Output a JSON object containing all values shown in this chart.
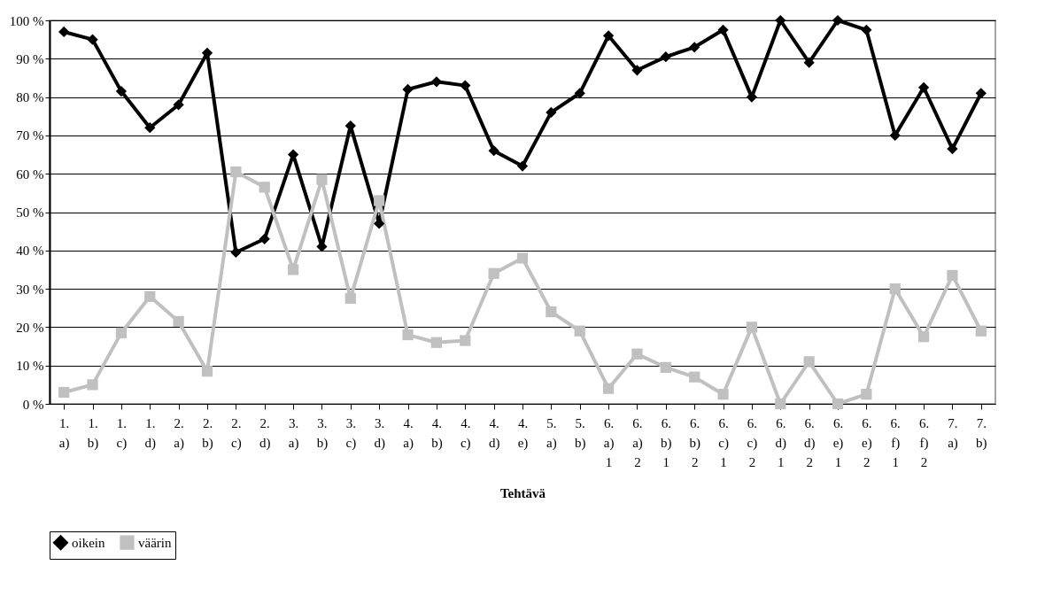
{
  "chart_data": {
    "type": "line",
    "xlabel": "Tehtävä",
    "categories": [
      "1.\na)",
      "1.\nb)",
      "1.\nc)",
      "1.\nd)",
      "2.\na)",
      "2.\nb)",
      "2.\nc)",
      "2.\nd)",
      "3.\na)",
      "3.\nb)",
      "3.\nc)",
      "3.\nd)",
      "4.\na)",
      "4.\nb)",
      "4.\nc)",
      "4.\nd)",
      "4.\ne)",
      "5.\na)",
      "5.\nb)",
      "6.\na)\n1",
      "6.\na)\n2",
      "6.\nb)\n1",
      "6.\nb)\n2",
      "6.\nc)\n1",
      "6.\nc)\n2",
      "6.\nd)\n1",
      "6.\nd)\n2",
      "6.\ne)\n1",
      "6.\ne)\n2",
      "6.\nf)\n1",
      "6.\nf)\n2",
      "7.\na)",
      "7.\nb)"
    ],
    "series": [
      {
        "name": "oikein",
        "color": "#000000",
        "marker": "diamond",
        "values": [
          97,
          95,
          81.5,
          72,
          78,
          91.5,
          39.5,
          43,
          65,
          41,
          72.5,
          47,
          82,
          84,
          83,
          66,
          62,
          76,
          81,
          96,
          87,
          90.5,
          93,
          97.5,
          80,
          100,
          89,
          100,
          97.5,
          70,
          82.5,
          66.5,
          81
        ]
      },
      {
        "name": "väärin",
        "color": "#c0c0c0",
        "marker": "square",
        "values": [
          3,
          5,
          18.5,
          28,
          21.5,
          8.5,
          60.5,
          56.5,
          35,
          58.5,
          27.5,
          53,
          18,
          16,
          16.5,
          34,
          38,
          24,
          19,
          4,
          13,
          9.5,
          7,
          2.5,
          20,
          0,
          11,
          0,
          2.5,
          30,
          17.5,
          33.5,
          19
        ]
      }
    ],
    "ylim": [
      0,
      100
    ],
    "yticks": [
      {
        "value": 0,
        "label": "0 %"
      },
      {
        "value": 10,
        "label": "10 %"
      },
      {
        "value": 20,
        "label": "20 %"
      },
      {
        "value": 30,
        "label": "30 %"
      },
      {
        "value": 40,
        "label": "40 %"
      },
      {
        "value": 50,
        "label": "50 %"
      },
      {
        "value": 60,
        "label": "60 %"
      },
      {
        "value": 70,
        "label": "70 %"
      },
      {
        "value": 80,
        "label": "80 %"
      },
      {
        "value": 90,
        "label": "90 %"
      },
      {
        "value": 100,
        "label": "100 %"
      }
    ],
    "grid": "y",
    "legend": "bottom",
    "line_style": "solid"
  }
}
